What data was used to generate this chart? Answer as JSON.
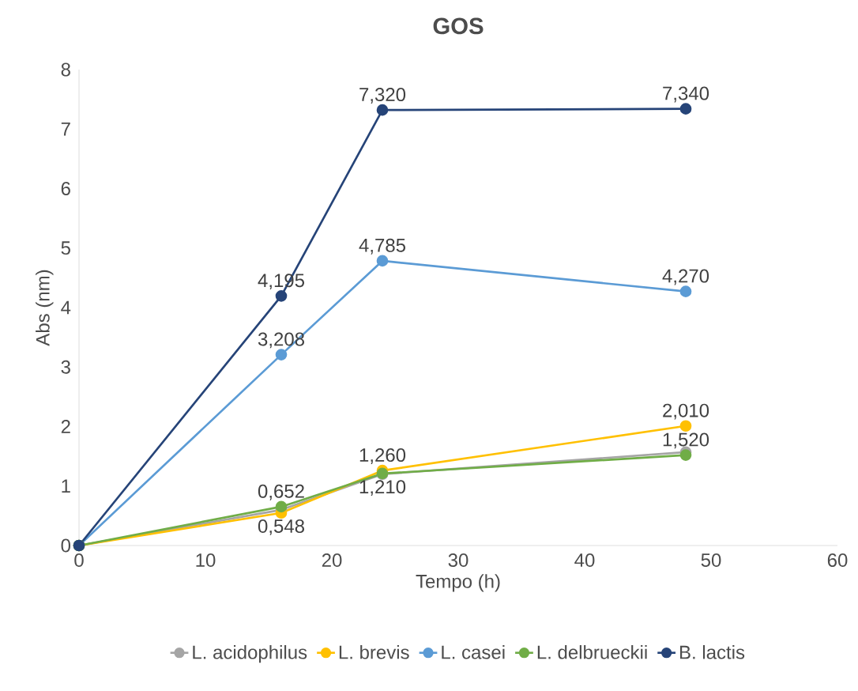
{
  "chart_data": {
    "type": "line",
    "title": "GOS",
    "xlabel": "Tempo (h)",
    "ylabel": "Abs (nm)",
    "x": [
      0,
      16,
      24,
      48
    ],
    "series": [
      {
        "name": "L. acidophilus",
        "color": "#a5a5a5",
        "values": [
          0,
          0.6,
          1.2,
          1.57
        ]
      },
      {
        "name": "L. brevis",
        "color": "#ffc000",
        "values": [
          0,
          0.548,
          1.26,
          2.01
        ],
        "value_labels": [
          null,
          "0,548",
          "1,260",
          "2,010"
        ]
      },
      {
        "name": "L. casei",
        "color": "#5b9bd5",
        "values": [
          0,
          3.208,
          4.785,
          4.27
        ],
        "value_labels": [
          null,
          "3,208",
          "4,785",
          "4,270"
        ]
      },
      {
        "name": "L. delbrueckii",
        "color": "#70ad47",
        "values": [
          0,
          0.652,
          1.21,
          1.52
        ],
        "value_labels": [
          null,
          "0,652",
          "1,210",
          "1,520"
        ]
      },
      {
        "name": "B. lactis",
        "color": "#264478",
        "values": [
          0,
          4.195,
          7.32,
          7.34
        ],
        "value_labels": [
          null,
          "4,195",
          "7,320",
          "7,340"
        ]
      }
    ],
    "xlim": [
      0,
      60
    ],
    "ylim": [
      0,
      8
    ],
    "xticks": [
      0,
      10,
      20,
      30,
      40,
      50,
      60
    ],
    "yticks": [
      0,
      1,
      2,
      3,
      4,
      5,
      6,
      7,
      8
    ],
    "grid": false,
    "legend": "bottom",
    "marker": "circle",
    "line_style": "solid"
  }
}
